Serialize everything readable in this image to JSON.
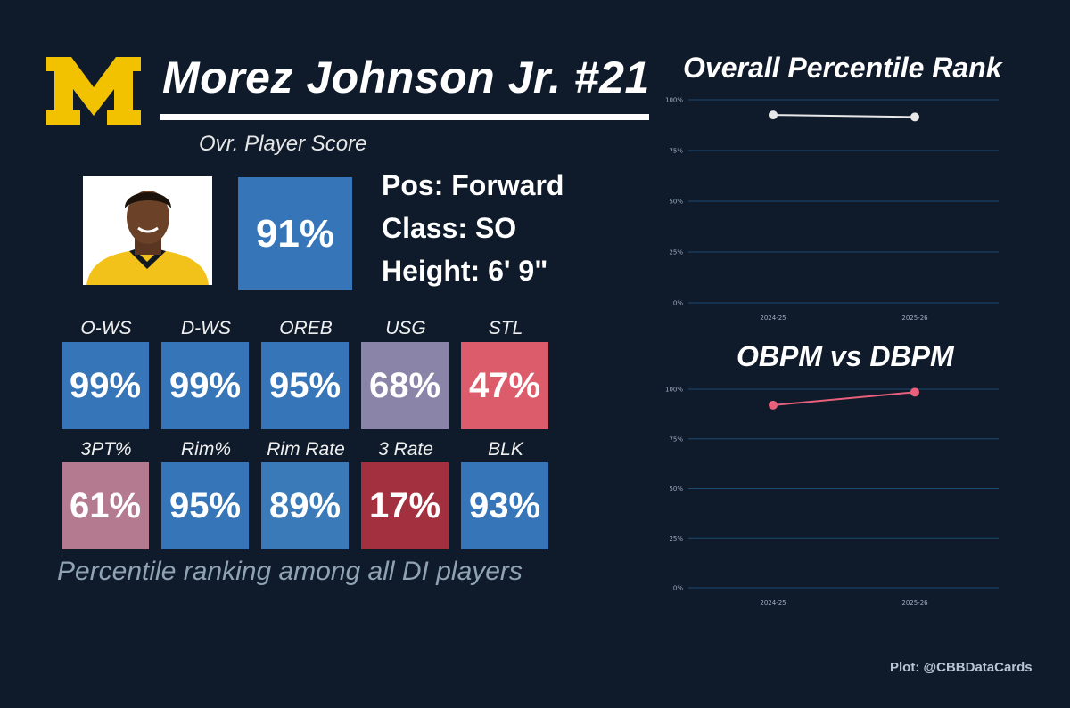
{
  "player": {
    "name": "Morez Johnson Jr. #21",
    "ovr_label": "Ovr. Player Score",
    "ovr_score": "91%",
    "position": "Pos: Forward",
    "class": "Class: SO",
    "height": "Height: 6' 9\""
  },
  "logo": {
    "text": "M",
    "color": "#f2c200"
  },
  "stats": [
    {
      "label": "O-WS",
      "value": "99%",
      "color": "#3575b8"
    },
    {
      "label": "D-WS",
      "value": "99%",
      "color": "#3575b8"
    },
    {
      "label": "OREB",
      "value": "95%",
      "color": "#3575b8"
    },
    {
      "label": "USG",
      "value": "68%",
      "color": "#8a84a8"
    },
    {
      "label": "STL",
      "value": "47%",
      "color": "#dc5c6b"
    },
    {
      "label": "3PT%",
      "value": "61%",
      "color": "#b47a90"
    },
    {
      "label": "Rim%",
      "value": "95%",
      "color": "#3575b8"
    },
    {
      "label": "Rim Rate",
      "value": "89%",
      "color": "#3a7ab8"
    },
    {
      "label": "3 Rate",
      "value": "17%",
      "color": "#a3303e"
    },
    {
      "label": "BLK",
      "value": "93%",
      "color": "#3575b8"
    }
  ],
  "footnote": "Percentile ranking among all DI players",
  "credit": "Plot: @CBBDataCards",
  "chart_data": [
    {
      "type": "line",
      "title": "Overall Percentile Rank",
      "categories": [
        "2024-25",
        "2025-26"
      ],
      "series": [
        {
          "values": [
            92.5,
            91.5
          ],
          "color": "#e8e8e8"
        }
      ],
      "ylim": [
        0,
        100
      ],
      "yticks": [
        "0%",
        "25%",
        "50%",
        "75%",
        "100%"
      ],
      "grid": true
    },
    {
      "type": "line",
      "title": "OBPM vs DBPM",
      "categories": [
        "2024-25",
        "2025-26"
      ],
      "series": [
        {
          "values": [
            92,
            98.5
          ],
          "color": "#e8607a"
        }
      ],
      "ylim": [
        0,
        100
      ],
      "yticks": [
        "0%",
        "25%",
        "50%",
        "75%",
        "100%"
      ],
      "grid": true
    }
  ]
}
